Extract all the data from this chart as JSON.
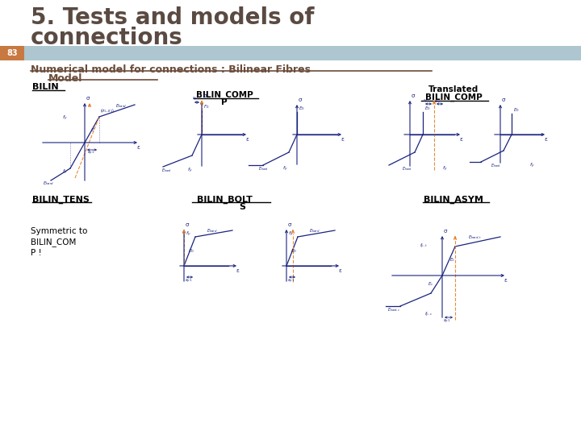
{
  "title_line1": "5. Tests and models of",
  "title_line2": "connections",
  "slide_number": "83",
  "subtitle_line1": "Numerical model for connections : Bilinear Fibres",
  "subtitle_line2": "    Model",
  "slide_bg": "#ffffff",
  "title_color": "#5a4a42",
  "subtitle_color": "#6b4c3b",
  "bar_color": "#c87941",
  "bar_bg": "#aec6cf",
  "diagram_blue": "#1a237e",
  "diagram_orange": "#e67e22"
}
